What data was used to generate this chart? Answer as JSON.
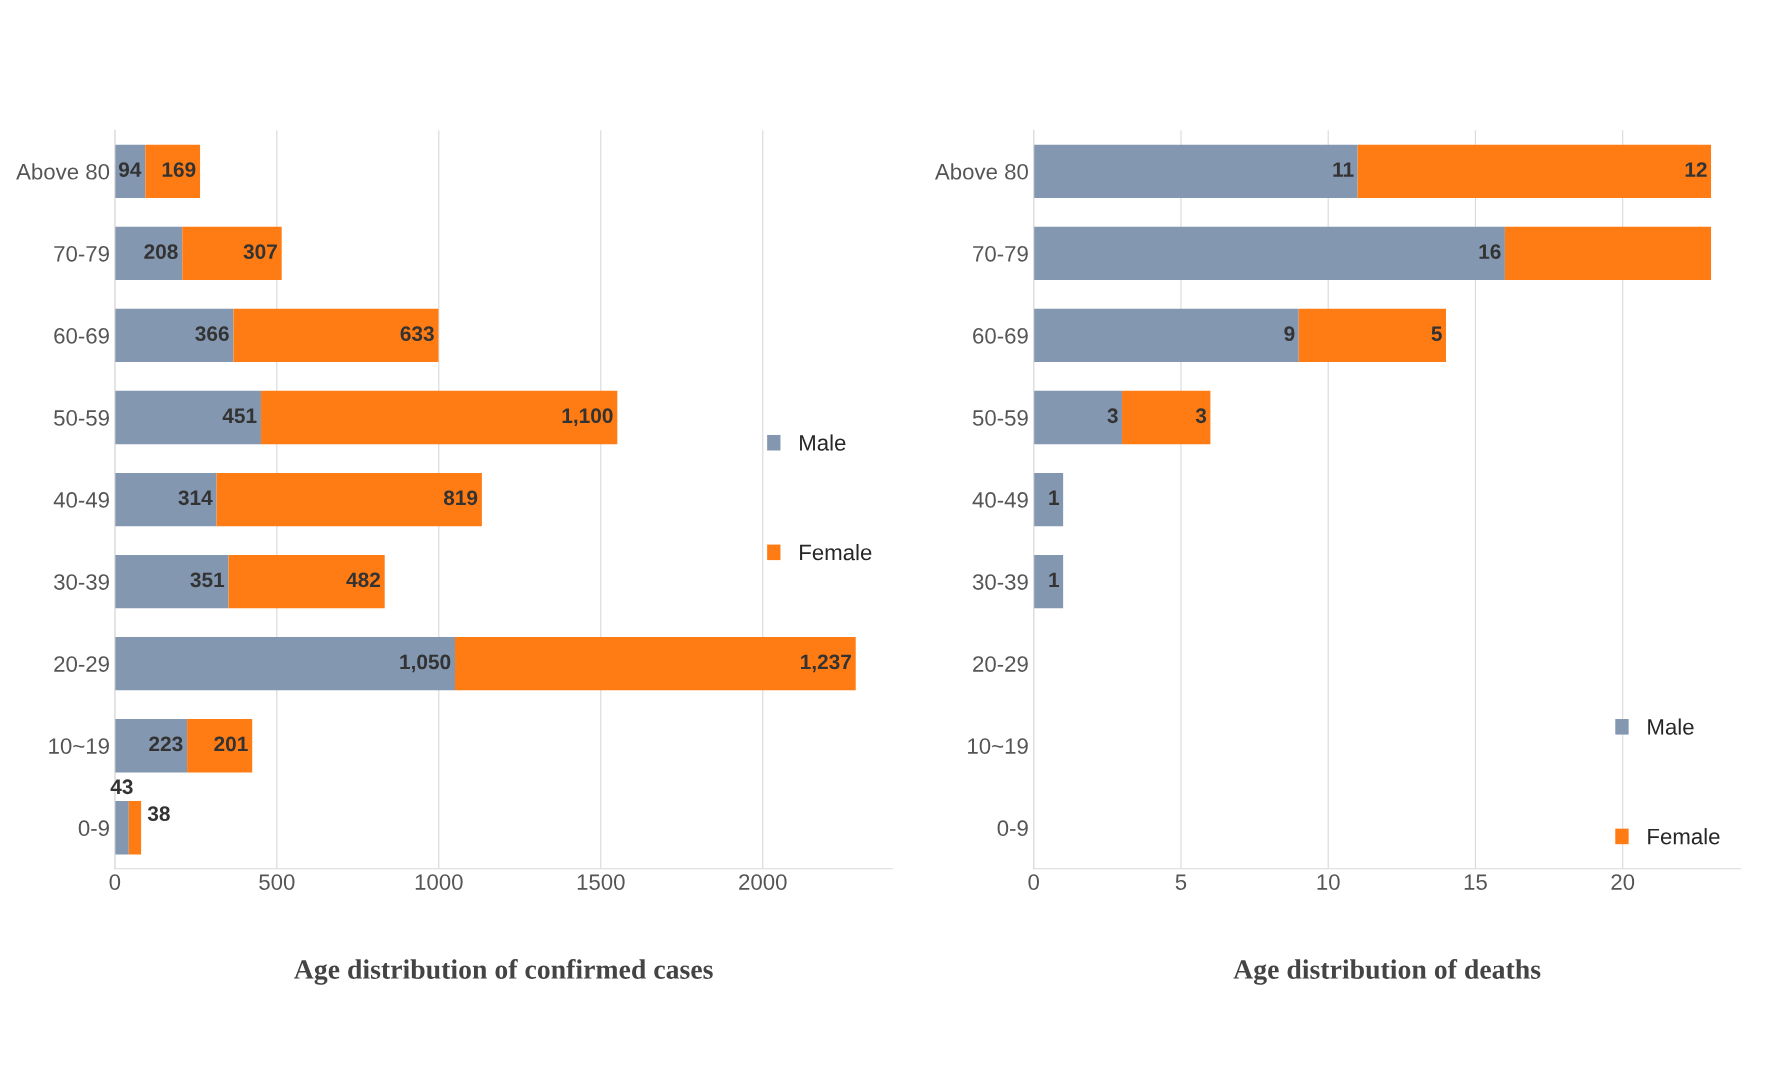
{
  "chart_data": [
    {
      "type": "bar",
      "orientation": "horizontal",
      "stacked": true,
      "title": "Age distribution of confirmed cases",
      "categories": [
        "Above 80",
        "70-79",
        "60-69",
        "50-59",
        "40-49",
        "30-39",
        "20-29",
        "10~19",
        "0-9"
      ],
      "series": [
        {
          "name": "Male",
          "color": "#8497b0",
          "values": [
            94,
            208,
            366,
            451,
            314,
            351,
            1050,
            223,
            43
          ],
          "value_labels": [
            "94",
            "208",
            "366",
            "451",
            "314",
            "351",
            "1,050",
            "223",
            "43"
          ]
        },
        {
          "name": "Female",
          "color": "#ff7c14",
          "values": [
            169,
            307,
            633,
            1100,
            819,
            482,
            1237,
            201,
            38
          ],
          "value_labels": [
            "169",
            "307",
            "633",
            "1,100",
            "819",
            "482",
            "1,237",
            "201",
            "38"
          ]
        }
      ],
      "xlim": [
        0,
        2400
      ],
      "xticks": [
        0,
        500,
        1000,
        1500,
        2000
      ],
      "grid": "x",
      "legend": "right"
    },
    {
      "type": "bar",
      "orientation": "horizontal",
      "stacked": true,
      "title": "Age distribution of deaths",
      "categories": [
        "Above 80",
        "70-79",
        "60-69",
        "50-59",
        "40-49",
        "30-39",
        "20-29",
        "10~19",
        "0-9"
      ],
      "series": [
        {
          "name": "Male",
          "color": "#8497b0",
          "values": [
            11,
            16,
            9,
            3,
            1,
            1,
            null,
            null,
            null
          ],
          "value_labels": [
            "11",
            "16",
            "9",
            "3",
            "1",
            "1",
            null,
            null,
            null
          ]
        },
        {
          "name": "Female",
          "color": "#ff7c14",
          "values": [
            12,
            7,
            5,
            3,
            null,
            null,
            null,
            null,
            null
          ],
          "value_labels": [
            "12",
            null,
            "5",
            "3",
            null,
            null,
            null,
            null,
            null
          ]
        }
      ],
      "xlim": [
        0,
        24
      ],
      "xticks": [
        0,
        5,
        10,
        15,
        20
      ],
      "grid": "x",
      "legend": "bottom right"
    }
  ]
}
